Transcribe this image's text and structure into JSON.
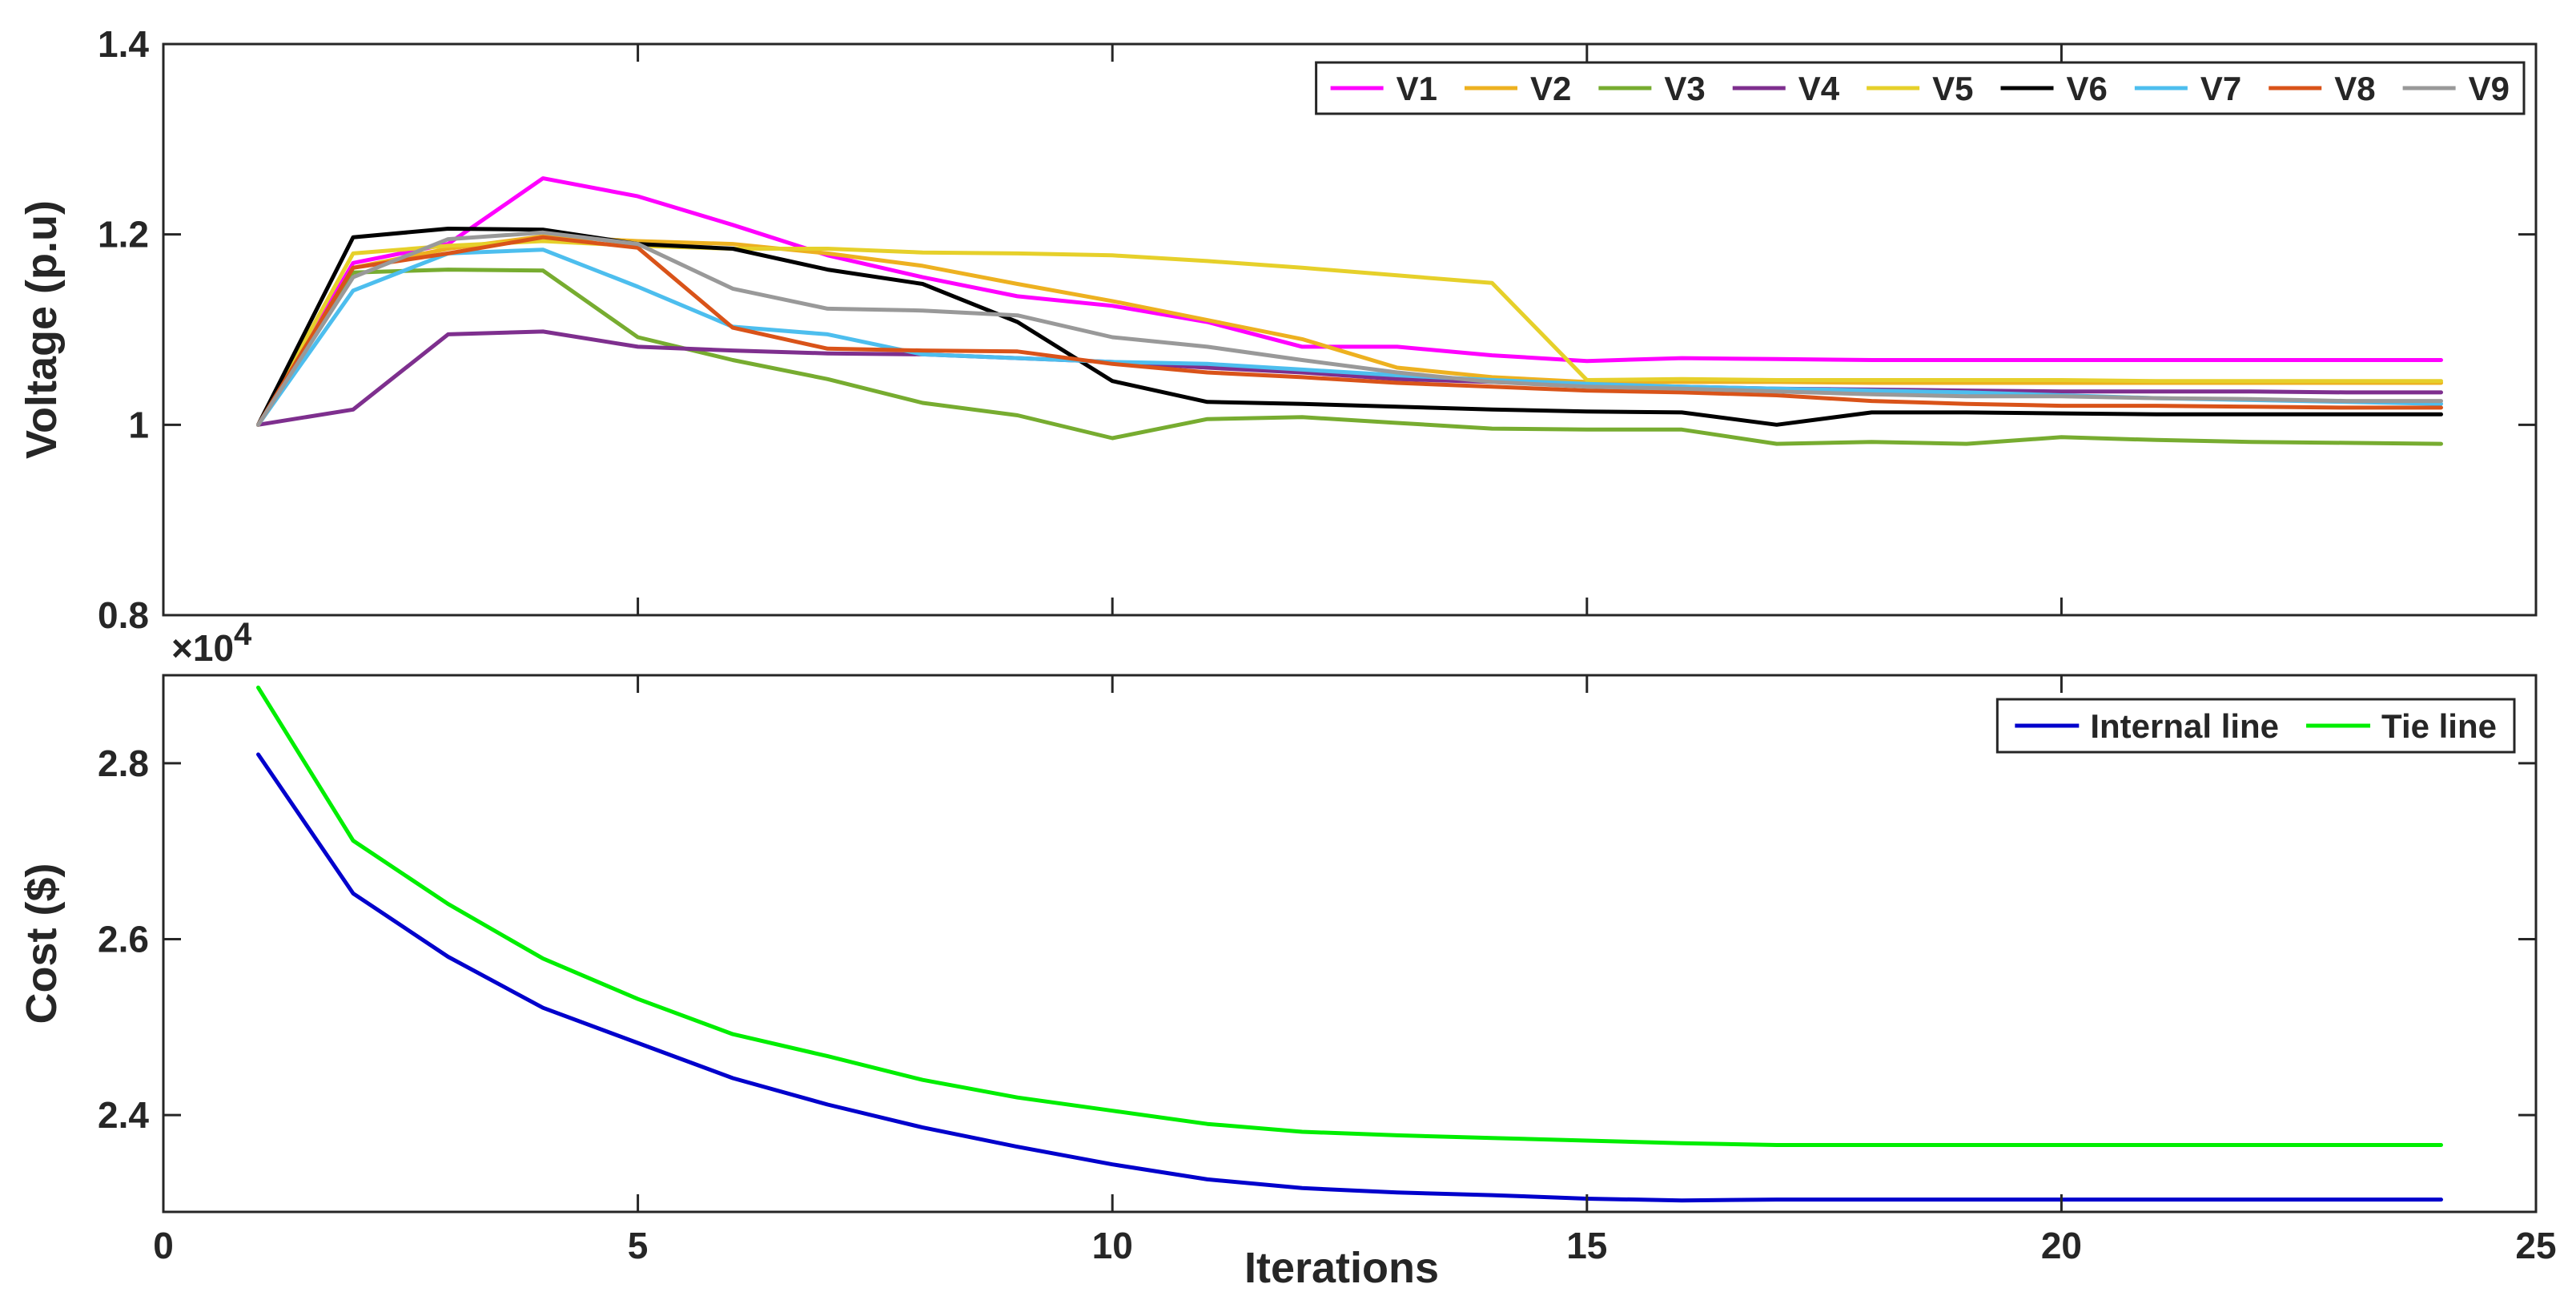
{
  "chart_data": [
    {
      "type": "line",
      "title": "",
      "xlabel": "",
      "ylabel": "Voltage (p.u)",
      "xlim": [
        0,
        25
      ],
      "ylim": [
        0.8,
        1.4
      ],
      "xticks": [
        0,
        5,
        10,
        15,
        20,
        25
      ],
      "xtick_labels": [
        "",
        "",
        "",
        "",
        "",
        ""
      ],
      "yticks": [
        0.8,
        1.0,
        1.2,
        1.4
      ],
      "ytick_labels": [
        "0.8",
        "1",
        "1.2",
        "1.4"
      ],
      "grid": false,
      "legend": "top-right",
      "legend_layout": "horizontal",
      "x": [
        1,
        2,
        3,
        4,
        5,
        6,
        7,
        8,
        9,
        10,
        11,
        12,
        13,
        14,
        15,
        16,
        17,
        18,
        19,
        20,
        21,
        22,
        23,
        24
      ],
      "series": [
        {
          "name": "V1",
          "color": "#ff00ff",
          "values": [
            1.0,
            1.17,
            1.19,
            1.259,
            1.24,
            1.21,
            1.178,
            1.155,
            1.135,
            1.125,
            1.108,
            1.082,
            1.082,
            1.073,
            1.067,
            1.07,
            1.069,
            1.068,
            1.068,
            1.068,
            1.068,
            1.068,
            1.068,
            1.068
          ]
        },
        {
          "name": "V2",
          "color": "#edb120",
          "values": [
            1.0,
            1.165,
            1.185,
            1.198,
            1.193,
            1.19,
            1.18,
            1.167,
            1.148,
            1.13,
            1.11,
            1.09,
            1.06,
            1.05,
            1.045,
            1.045,
            1.045,
            1.044,
            1.044,
            1.044,
            1.044,
            1.044,
            1.044,
            1.044
          ]
        },
        {
          "name": "V3",
          "color": "#77ac30",
          "values": [
            1.0,
            1.16,
            1.163,
            1.162,
            1.092,
            1.068,
            1.048,
            1.023,
            1.01,
            0.986,
            1.006,
            1.008,
            1.002,
            0.996,
            0.995,
            0.995,
            0.98,
            0.982,
            0.98,
            0.987,
            0.984,
            0.982,
            0.981,
            0.98
          ]
        },
        {
          "name": "V4",
          "color": "#7e2f8e",
          "values": [
            1.0,
            1.016,
            1.095,
            1.098,
            1.082,
            1.078,
            1.075,
            1.074,
            1.07,
            1.066,
            1.06,
            1.055,
            1.048,
            1.045,
            1.042,
            1.04,
            1.038,
            1.037,
            1.036,
            1.035,
            1.035,
            1.035,
            1.034,
            1.034
          ]
        },
        {
          "name": "V5",
          "color": "#e6d02a",
          "values": [
            1.0,
            1.18,
            1.188,
            1.193,
            1.188,
            1.185,
            1.185,
            1.181,
            1.18,
            1.178,
            1.172,
            1.165,
            1.157,
            1.149,
            1.047,
            1.048,
            1.047,
            1.047,
            1.047,
            1.047,
            1.046,
            1.046,
            1.046,
            1.046
          ]
        },
        {
          "name": "V6",
          "color": "#000000",
          "values": [
            1.0,
            1.197,
            1.206,
            1.205,
            1.19,
            1.185,
            1.163,
            1.148,
            1.108,
            1.046,
            1.024,
            1.022,
            1.019,
            1.016,
            1.014,
            1.013,
            1.0,
            1.013,
            1.013,
            1.012,
            1.011,
            1.011,
            1.011,
            1.011
          ]
        },
        {
          "name": "V7",
          "color": "#4dbeee",
          "values": [
            1.0,
            1.141,
            1.18,
            1.184,
            1.145,
            1.103,
            1.095,
            1.074,
            1.07,
            1.066,
            1.064,
            1.058,
            1.052,
            1.047,
            1.043,
            1.04,
            1.038,
            1.036,
            1.034,
            1.031,
            1.028,
            1.026,
            1.024,
            1.022
          ]
        },
        {
          "name": "V8",
          "color": "#d95319",
          "values": [
            1.0,
            1.165,
            1.18,
            1.197,
            1.186,
            1.102,
            1.08,
            1.078,
            1.077,
            1.064,
            1.055,
            1.05,
            1.044,
            1.04,
            1.036,
            1.034,
            1.031,
            1.025,
            1.022,
            1.02,
            1.02,
            1.019,
            1.018,
            1.018
          ]
        },
        {
          "name": "V9",
          "color": "#999999",
          "values": [
            1.0,
            1.155,
            1.195,
            1.202,
            1.19,
            1.143,
            1.122,
            1.12,
            1.115,
            1.092,
            1.082,
            1.068,
            1.055,
            1.045,
            1.04,
            1.038,
            1.035,
            1.032,
            1.03,
            1.03,
            1.028,
            1.027,
            1.025,
            1.025
          ]
        }
      ]
    },
    {
      "type": "line",
      "title": "",
      "xlabel": "Iterations",
      "ylabel": "Cost ($)",
      "y_exponent_label": "×10",
      "y_exponent": "4",
      "xlim": [
        0,
        25
      ],
      "ylim": [
        22.9,
        29.0
      ],
      "xticks": [
        0,
        5,
        10,
        15,
        20,
        25
      ],
      "xtick_labels": [
        "0",
        "5",
        "10",
        "15",
        "20",
        "25"
      ],
      "yticks": [
        24.0,
        26.0,
        28.0
      ],
      "ytick_labels": [
        "2.4",
        "2.6",
        "2.8"
      ],
      "grid": false,
      "legend": "top-right",
      "legend_layout": "horizontal",
      "x": [
        1,
        2,
        3,
        4,
        5,
        6,
        7,
        8,
        9,
        10,
        11,
        12,
        13,
        14,
        15,
        16,
        17,
        18,
        19,
        20,
        21,
        22,
        23,
        24
      ],
      "series": [
        {
          "name": "Internal line",
          "color": "#0000cc",
          "values": [
            28.1,
            26.52,
            25.8,
            25.22,
            24.82,
            24.42,
            24.12,
            23.86,
            23.64,
            23.44,
            23.27,
            23.17,
            23.12,
            23.09,
            23.05,
            23.03,
            23.04,
            23.04,
            23.04,
            23.04,
            23.04,
            23.04,
            23.04,
            23.04
          ]
        },
        {
          "name": "Tie line",
          "color": "#00ee00",
          "values": [
            28.86,
            27.12,
            26.4,
            25.78,
            25.32,
            24.92,
            24.67,
            24.4,
            24.2,
            24.05,
            23.9,
            23.81,
            23.77,
            23.74,
            23.71,
            23.68,
            23.66,
            23.66,
            23.66,
            23.66,
            23.66,
            23.66,
            23.66,
            23.66
          ]
        }
      ]
    }
  ]
}
